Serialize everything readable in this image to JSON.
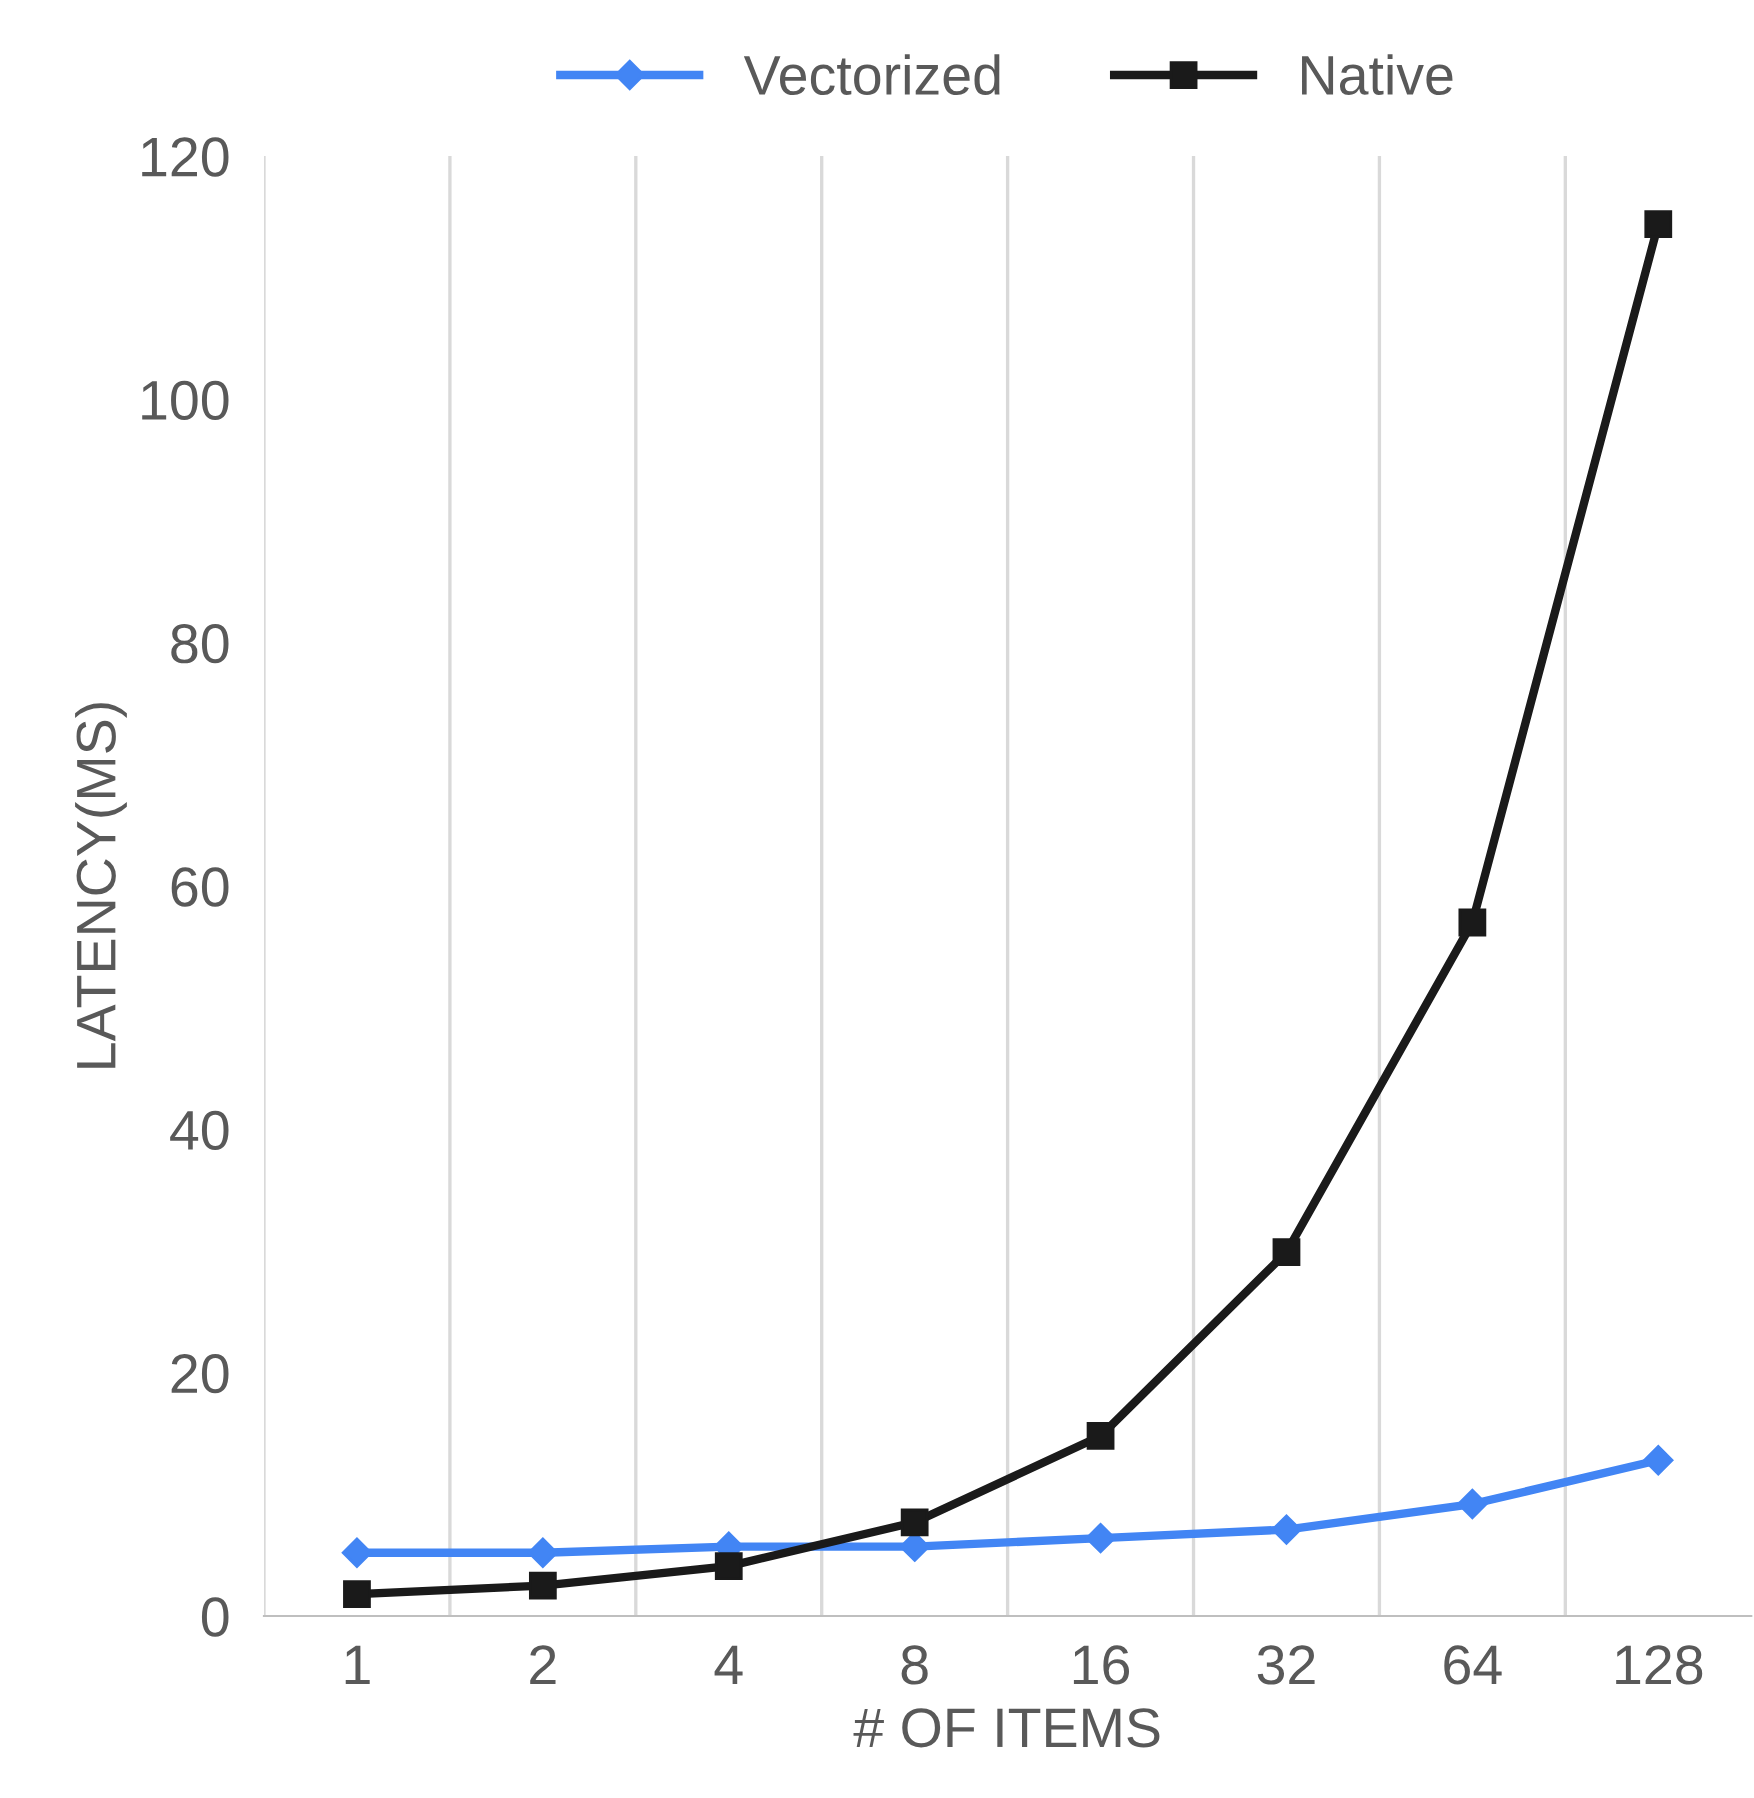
{
  "chart_data": {
    "type": "line",
    "xlabel": "# OF ITEMS",
    "ylabel": "LATENCY(MS)",
    "categories": [
      "1",
      "2",
      "4",
      "8",
      "16",
      "32",
      "64",
      "128"
    ],
    "series": [
      {
        "name": "Vectorized",
        "color": "#4285f4",
        "marker": "diamond",
        "values": [
          5.2,
          5.2,
          5.7,
          5.7,
          6.4,
          7.1,
          9.2,
          12.8
        ]
      },
      {
        "name": "Native",
        "color": "#1a1a1a",
        "marker": "square",
        "values": [
          1.8,
          2.5,
          4.1,
          7.7,
          14.8,
          29.9,
          57.0,
          114.4
        ]
      }
    ],
    "ylim": [
      0,
      120
    ],
    "yticks": [
      0,
      20,
      40,
      60,
      80,
      100,
      120
    ],
    "grid": "x",
    "legend": "top",
    "line_style": "solid"
  }
}
